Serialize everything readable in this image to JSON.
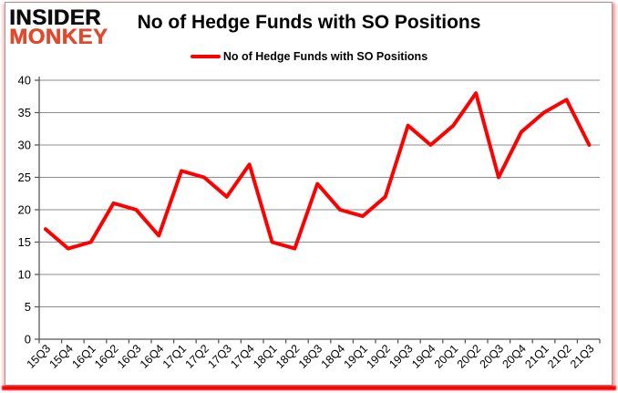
{
  "logo": {
    "line1": "INSIDER",
    "line2": "MONKEY"
  },
  "chart_data": {
    "type": "line",
    "title": "No of Hedge Funds with SO Positions",
    "categories": [
      "15Q3",
      "15Q4",
      "16Q1",
      "16Q2",
      "16Q3",
      "16Q4",
      "17Q1",
      "17Q2",
      "17Q3",
      "17Q4",
      "18Q1",
      "18Q2",
      "18Q3",
      "18Q4",
      "19Q1",
      "19Q2",
      "19Q3",
      "19Q4",
      "20Q1",
      "20Q2",
      "20Q3",
      "20Q4",
      "21Q1",
      "21Q2",
      "21Q3"
    ],
    "series": [
      {
        "name": "No of Hedge Funds with SO Positions",
        "color": "#ff0000",
        "values": [
          17,
          14,
          15,
          21,
          20,
          16,
          26,
          25,
          22,
          27,
          15,
          14,
          24,
          20,
          19,
          22,
          33,
          30,
          33,
          38,
          25,
          32,
          35,
          37,
          30
        ]
      }
    ],
    "xlabel": "",
    "ylabel": "",
    "ylim": [
      0,
      40
    ],
    "yticks": [
      0,
      5,
      10,
      15,
      20,
      25,
      30,
      35,
      40
    ],
    "grid": true,
    "legend_position": "top-center",
    "x_tick_rotation_deg": 45
  },
  "colors": {
    "line": "#ff0000",
    "grid": "#8c8c8c",
    "axis": "#595959",
    "text": "#000000",
    "logo_monkey": "#e2492c",
    "accent_bottom_bar": "#ff0000",
    "frame_border": "#9a9a9a"
  }
}
